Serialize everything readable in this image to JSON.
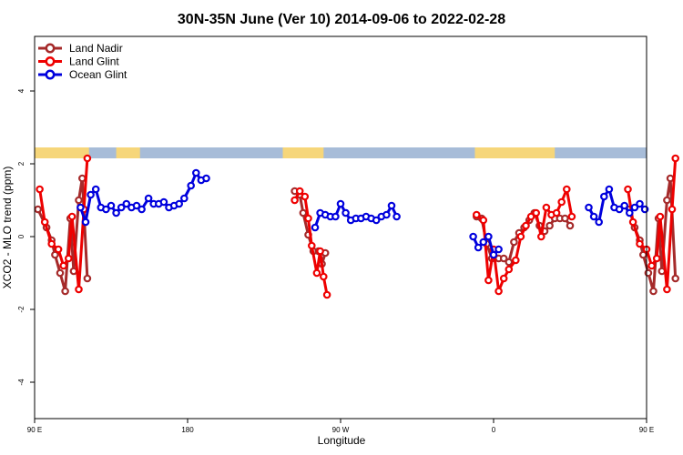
{
  "chart_data": {
    "type": "line",
    "title": "30N-35N June (Ver 10)   2014-09-06 to 2022-02-28",
    "xlabel": "Longitude",
    "ylabel": "XCO2 - MLO trend (ppm)",
    "xlim": [
      90,
      450
    ],
    "ylim": [
      -5,
      5.5
    ],
    "x_ticks": [
      {
        "value": 90,
        "label": "90 E"
      },
      {
        "value": 180,
        "label": "180"
      },
      {
        "value": 270,
        "label": "90 W"
      },
      {
        "value": 360,
        "label": "0"
      },
      {
        "value": 450,
        "label": "90 E"
      },
      {
        "value": 540,
        "label": "180"
      }
    ],
    "y_ticks": [
      {
        "value": -4,
        "label": "-4"
      },
      {
        "value": -2,
        "label": "-2"
      },
      {
        "value": 0,
        "label": "0"
      },
      {
        "value": 2,
        "label": "2"
      },
      {
        "value": 4,
        "label": "4"
      }
    ],
    "grid": false,
    "legend_position": "top-left",
    "land_band": {
      "y_bottom": 2.15,
      "y_top": 2.45,
      "ocean_color": "#a7bcd8",
      "land_color": "#f6d67a",
      "land_ranges": [
        [
          90,
          122
        ],
        [
          138,
          152
        ],
        [
          236,
          260
        ],
        [
          349,
          396
        ],
        [
          452,
          484
        ],
        [
          498,
          512
        ]
      ]
    },
    "series": [
      {
        "name": "Land Nadir",
        "color": "#a52a2a",
        "segments": [
          [
            [
              92,
              0.75
            ],
            [
              97,
              0.25
            ],
            [
              100,
              -0.1
            ],
            [
              102,
              -0.5
            ],
            [
              105,
              -1.0
            ],
            [
              108,
              -1.5
            ],
            [
              111,
              0.5
            ],
            [
              113,
              -0.95
            ],
            [
              116,
              1.0
            ],
            [
              118,
              1.6
            ],
            [
              121,
              -1.15
            ]
          ],
          [
            [
              243,
              1.25
            ],
            [
              246,
              1.15
            ],
            [
              248,
              0.65
            ],
            [
              251,
              0.05
            ],
            [
              254,
              -0.4
            ],
            [
              257,
              -0.4
            ],
            [
              259,
              -0.75
            ],
            [
              261,
              -0.45
            ]
          ],
          [
            [
              350,
              0.55
            ],
            [
              353,
              0.5
            ],
            [
              356,
              -0.2
            ],
            [
              359,
              -0.6
            ],
            [
              363,
              -0.6
            ],
            [
              366,
              -0.6
            ],
            [
              369,
              -0.7
            ],
            [
              372,
              -0.15
            ],
            [
              375,
              0.1
            ],
            [
              378,
              0.25
            ],
            [
              381,
              0.45
            ],
            [
              384,
              0.65
            ],
            [
              387,
              0.3
            ],
            [
              390,
              0.15
            ],
            [
              393,
              0.3
            ],
            [
              396,
              0.5
            ],
            [
              399,
              0.5
            ],
            [
              402,
              0.5
            ],
            [
              405,
              0.3
            ]
          ],
          [
            [
              440,
              0.75
            ],
            [
              443,
              0.25
            ],
            [
              446,
              -0.1
            ],
            [
              448,
              -0.5
            ],
            [
              451,
              -1.0
            ],
            [
              454,
              -1.5
            ],
            [
              457,
              0.5
            ],
            [
              459,
              -0.95
            ],
            [
              462,
              1.0
            ],
            [
              464,
              1.6
            ],
            [
              467,
              -1.15
            ]
          ]
        ]
      },
      {
        "name": "Land Glint",
        "color": "#ee0000",
        "segments": [
          [
            [
              93,
              1.3
            ],
            [
              96,
              0.4
            ],
            [
              100,
              -0.2
            ],
            [
              104,
              -0.35
            ],
            [
              107,
              -0.8
            ],
            [
              110,
              -0.6
            ],
            [
              112,
              0.55
            ],
            [
              116,
              -1.45
            ],
            [
              119,
              0.75
            ],
            [
              121,
              2.15
            ]
          ],
          [
            [
              243,
              1.0
            ],
            [
              246,
              1.25
            ],
            [
              249,
              1.1
            ],
            [
              251,
              0.5
            ],
            [
              253,
              -0.25
            ],
            [
              256,
              -1.0
            ],
            [
              258,
              -0.4
            ],
            [
              260,
              -1.1
            ],
            [
              262,
              -1.6
            ]
          ],
          [
            [
              350,
              0.6
            ],
            [
              354,
              0.45
            ],
            [
              357,
              -1.2
            ],
            [
              360,
              -0.35
            ],
            [
              363,
              -1.5
            ],
            [
              366,
              -1.15
            ],
            [
              369,
              -0.9
            ],
            [
              373,
              -0.65
            ],
            [
              376,
              0.0
            ],
            [
              379,
              0.3
            ],
            [
              382,
              0.55
            ],
            [
              385,
              0.65
            ],
            [
              388,
              0.0
            ],
            [
              391,
              0.8
            ],
            [
              394,
              0.6
            ],
            [
              397,
              0.65
            ],
            [
              400,
              0.95
            ],
            [
              403,
              1.3
            ],
            [
              406,
              0.55
            ]
          ],
          [
            [
              439,
              1.3
            ],
            [
              442,
              0.4
            ],
            [
              446,
              -0.2
            ],
            [
              450,
              -0.35
            ],
            [
              453,
              -0.8
            ],
            [
              456,
              -0.6
            ],
            [
              458,
              0.55
            ],
            [
              462,
              -1.45
            ],
            [
              465,
              0.75
            ],
            [
              467,
              2.15
            ]
          ]
        ]
      },
      {
        "name": "Ocean Glint",
        "color": "#0000dd",
        "segments": [
          [
            [
              117,
              0.8
            ],
            [
              120,
              0.4
            ],
            [
              123,
              1.15
            ],
            [
              126,
              1.3
            ],
            [
              129,
              0.8
            ],
            [
              132,
              0.75
            ],
            [
              135,
              0.85
            ],
            [
              138,
              0.65
            ],
            [
              141,
              0.8
            ],
            [
              144,
              0.9
            ],
            [
              147,
              0.8
            ],
            [
              150,
              0.85
            ],
            [
              153,
              0.75
            ],
            [
              157,
              1.05
            ],
            [
              160,
              0.9
            ],
            [
              163,
              0.9
            ],
            [
              166,
              0.95
            ],
            [
              169,
              0.8
            ],
            [
              172,
              0.85
            ],
            [
              175,
              0.9
            ],
            [
              178,
              1.05
            ],
            [
              182,
              1.4
            ],
            [
              185,
              1.75
            ],
            [
              188,
              1.55
            ],
            [
              191,
              1.6
            ]
          ],
          [
            [
              255,
              0.25
            ],
            [
              258,
              0.65
            ],
            [
              261,
              0.6
            ],
            [
              264,
              0.55
            ],
            [
              267,
              0.55
            ],
            [
              270,
              0.9
            ],
            [
              273,
              0.65
            ],
            [
              276,
              0.45
            ],
            [
              279,
              0.5
            ],
            [
              282,
              0.5
            ],
            [
              285,
              0.55
            ],
            [
              288,
              0.5
            ],
            [
              291,
              0.45
            ],
            [
              294,
              0.55
            ],
            [
              297,
              0.6
            ],
            [
              300,
              0.85
            ],
            [
              303,
              0.55
            ]
          ],
          [
            [
              348,
              0.0
            ],
            [
              351,
              -0.3
            ],
            [
              354,
              -0.15
            ],
            [
              357,
              0.0
            ],
            [
              360,
              -0.5
            ],
            [
              363,
              -0.35
            ]
          ],
          [
            [
              416,
              0.8
            ],
            [
              419,
              0.55
            ],
            [
              422,
              0.4
            ],
            [
              425,
              1.1
            ],
            [
              428,
              1.3
            ],
            [
              431,
              0.8
            ],
            [
              434,
              0.75
            ],
            [
              437,
              0.85
            ],
            [
              440,
              0.65
            ],
            [
              443,
              0.8
            ],
            [
              446,
              0.9
            ],
            [
              449,
              0.75
            ]
          ]
        ]
      }
    ]
  }
}
